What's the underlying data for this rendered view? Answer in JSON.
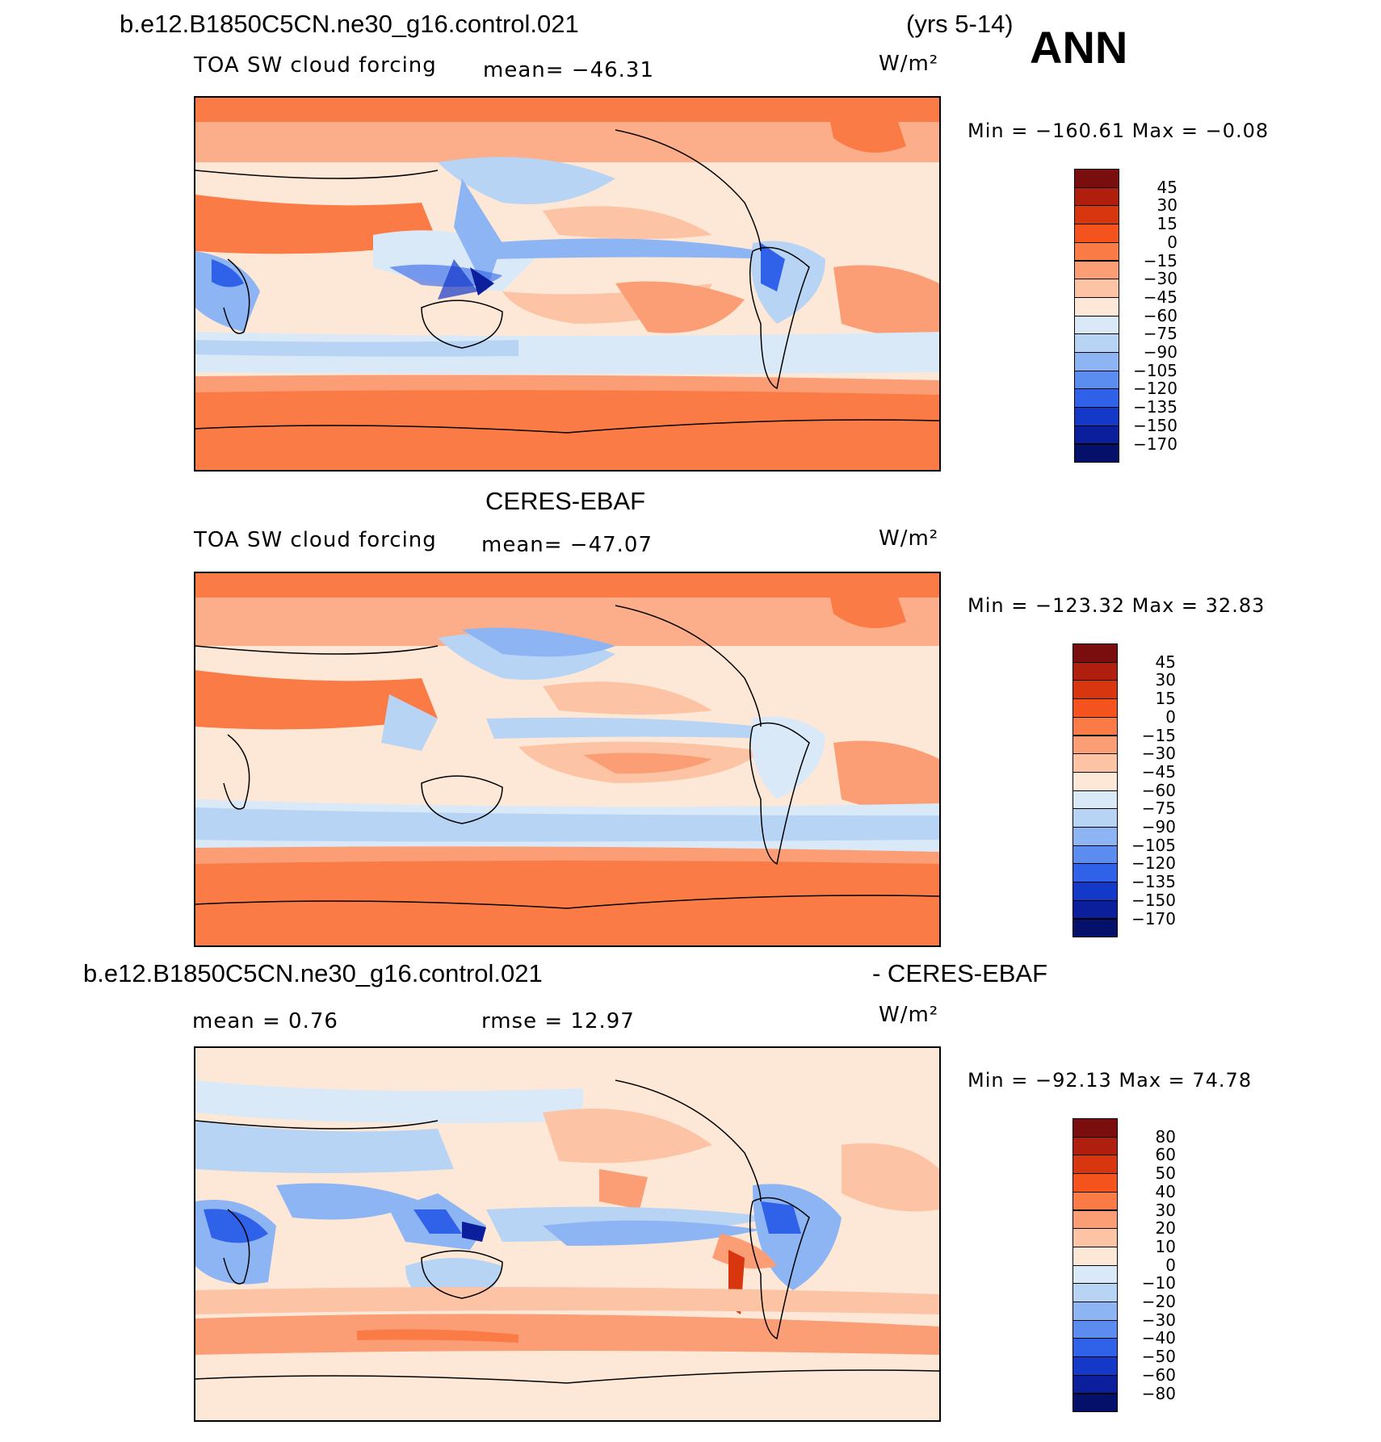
{
  "header": {
    "case_name": "b.e12.B1850C5CN.ne30_g16.control.021",
    "years": "(yrs 5-14)",
    "season": "ANN"
  },
  "panels": [
    {
      "id": "model",
      "variable": "TOA SW cloud forcing",
      "mean_text": "mean=  −46.31",
      "units": "W/m²",
      "min_max": "Min  =  −160.61  Max  =   −0.08",
      "colorbar_labels": [
        "45",
        "30",
        "15",
        "0",
        "−15",
        "−30",
        "−45",
        "−60",
        "−75",
        "−90",
        "−105",
        "−120",
        "−135",
        "−150",
        "−170"
      ]
    },
    {
      "id": "obs",
      "title": "CERES-EBAF",
      "variable": "TOA SW cloud forcing",
      "mean_text": "mean=  −47.07",
      "units": "W/m²",
      "min_max": "Min  =  −123.32  Max  =   32.83",
      "colorbar_labels": [
        "45",
        "30",
        "15",
        "0",
        "−15",
        "−30",
        "−45",
        "−60",
        "−75",
        "−90",
        "−105",
        "−120",
        "−135",
        "−150",
        "−170"
      ]
    },
    {
      "id": "diff",
      "title_left": "b.e12.B1850C5CN.ne30_g16.control.021",
      "title_right": "- CERES-EBAF",
      "mean_text": "mean  =     0.76",
      "rmse_text": "rmse  =    12.97",
      "units": "W/m²",
      "min_max": "Min  =  −92.13  Max  =    74.78",
      "colorbar_labels": [
        "80",
        "60",
        "50",
        "40",
        "30",
        "20",
        "10",
        "0",
        "−10",
        "−20",
        "−30",
        "−40",
        "−50",
        "−60",
        "−80"
      ]
    }
  ],
  "colors": {
    "colorbar": [
      "#7a0d0d",
      "#b01e0e",
      "#d8360e",
      "#f5531e",
      "#fb7b46",
      "#fb9e76",
      "#fcc4a5",
      "#fde8d8",
      "#d9e9f8",
      "#b8d4f5",
      "#8db5f3",
      "#5b8cef",
      "#2f62e8",
      "#1438c8",
      "#0b1f9c",
      "#05106b"
    ],
    "diff_colorbar": [
      "#7a0d0d",
      "#b01e0e",
      "#d8360e",
      "#f5531e",
      "#fb7b46",
      "#fb9e76",
      "#fcc4a5",
      "#fde8d8",
      "#d9e9f8",
      "#b8d4f5",
      "#8db5f3",
      "#5b8cef",
      "#2f62e8",
      "#1438c8",
      "#0b1f9c",
      "#05106b"
    ]
  }
}
